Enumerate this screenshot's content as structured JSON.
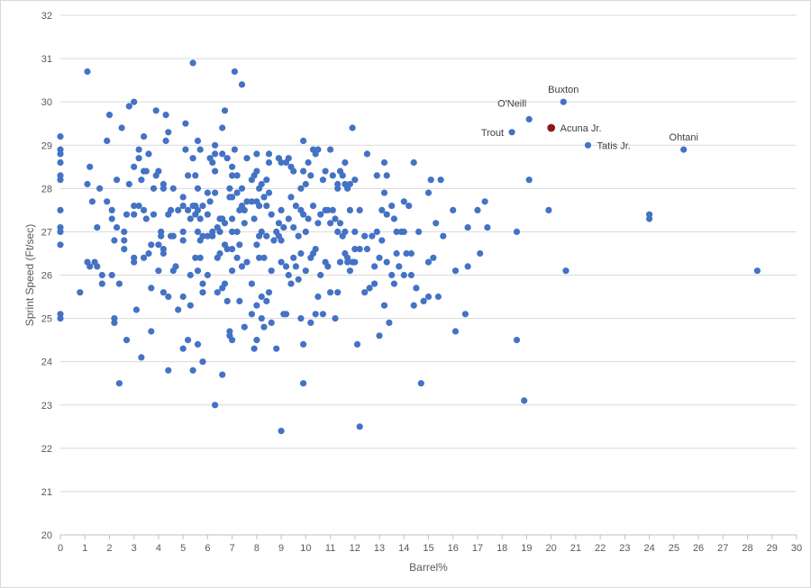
{
  "chart_data": {
    "type": "scatter",
    "xlabel": "Barrel%",
    "ylabel": "Sprint Speed (Ft/sec)",
    "xlim": [
      0,
      30
    ],
    "ylim": [
      20,
      32
    ],
    "x_ticks": [
      0,
      1,
      2,
      3,
      4,
      5,
      6,
      7,
      8,
      9,
      10,
      11,
      12,
      13,
      14,
      15,
      16,
      17,
      18,
      19,
      20,
      21,
      22,
      23,
      24,
      25,
      26,
      27,
      28,
      29,
      30
    ],
    "y_ticks": [
      20,
      21,
      22,
      23,
      24,
      25,
      26,
      27,
      28,
      29,
      30,
      31,
      32
    ],
    "grid": "horizontal",
    "legend": "none",
    "point_color": "#4472c4",
    "highlight_color": "#c00000",
    "annotations": [
      {
        "label": "Buxton",
        "x": 20.5,
        "y": 30.0,
        "position": "above"
      },
      {
        "label": "O'Neill",
        "x": 19.1,
        "y": 29.6,
        "position": "above-left"
      },
      {
        "label": "Trout",
        "x": 18.4,
        "y": 29.3,
        "position": "left"
      },
      {
        "label": "Acuna Jr.",
        "x": 20.0,
        "y": 29.4,
        "position": "right",
        "highlight": true
      },
      {
        "label": "Tatis Jr.",
        "x": 21.5,
        "y": 29.0,
        "position": "right"
      },
      {
        "label": "Ohtani",
        "x": 25.4,
        "y": 28.9,
        "position": "above"
      }
    ],
    "points": [
      [
        0,
        29.2
      ],
      [
        0,
        28.9
      ],
      [
        0,
        28.8
      ],
      [
        0,
        28.6
      ],
      [
        0,
        28.3
      ],
      [
        0,
        28.2
      ],
      [
        0,
        27.5
      ],
      [
        0,
        27.1
      ],
      [
        0,
        27.0
      ],
      [
        0,
        26.7
      ],
      [
        0,
        25.1
      ],
      [
        0,
        25.0
      ],
      [
        0.8,
        25.6
      ],
      [
        1.1,
        30.7
      ],
      [
        1.2,
        28.5
      ],
      [
        1.1,
        28.1
      ],
      [
        1.3,
        27.7
      ],
      [
        1.1,
        26.3
      ],
      [
        1.2,
        26.2
      ],
      [
        1.4,
        26.3
      ],
      [
        1.5,
        26.2
      ],
      [
        1.5,
        27.1
      ],
      [
        1.6,
        28.0
      ],
      [
        1.7,
        25.8
      ],
      [
        1.7,
        26.0
      ],
      [
        1.9,
        27.7
      ],
      [
        1.9,
        29.1
      ],
      [
        2.0,
        29.7
      ],
      [
        2.1,
        27.5
      ],
      [
        2.1,
        27.3
      ],
      [
        2.2,
        26.8
      ],
      [
        2.1,
        26.0
      ],
      [
        2.2,
        25.0
      ],
      [
        2.2,
        24.9
      ],
      [
        2.3,
        27.1
      ],
      [
        2.3,
        28.2
      ],
      [
        2.4,
        25.8
      ],
      [
        2.4,
        23.5
      ],
      [
        2.5,
        29.4
      ],
      [
        2.6,
        27.0
      ],
      [
        2.6,
        26.8
      ],
      [
        2.6,
        26.6
      ],
      [
        2.7,
        24.5
      ],
      [
        2.7,
        27.4
      ],
      [
        2.8,
        28.1
      ],
      [
        2.8,
        29.9
      ],
      [
        3.0,
        30.0
      ],
      [
        3.0,
        28.5
      ],
      [
        3.0,
        27.6
      ],
      [
        3.0,
        27.4
      ],
      [
        3.0,
        26.4
      ],
      [
        3.0,
        26.3
      ],
      [
        3.1,
        25.2
      ],
      [
        3.2,
        27.6
      ],
      [
        3.2,
        28.9
      ],
      [
        3.2,
        28.7
      ],
      [
        3.3,
        28.2
      ],
      [
        3.3,
        24.1
      ],
      [
        3.4,
        29.2
      ],
      [
        3.4,
        28.4
      ],
      [
        3.4,
        27.5
      ],
      [
        3.4,
        26.4
      ],
      [
        3.5,
        28.4
      ],
      [
        3.5,
        27.3
      ],
      [
        3.6,
        28.8
      ],
      [
        3.6,
        26.5
      ],
      [
        3.7,
        26.7
      ],
      [
        3.7,
        24.7
      ],
      [
        3.7,
        25.7
      ],
      [
        3.8,
        27.4
      ],
      [
        3.8,
        28.0
      ],
      [
        3.9,
        28.3
      ],
      [
        3.9,
        29.8
      ],
      [
        4.0,
        28.4
      ],
      [
        4.0,
        26.7
      ],
      [
        4.0,
        26.1
      ],
      [
        4.1,
        27.0
      ],
      [
        4.1,
        26.9
      ],
      [
        4.2,
        26.6
      ],
      [
        4.2,
        26.5
      ],
      [
        4.2,
        25.6
      ],
      [
        4.2,
        28.0
      ],
      [
        4.2,
        28.1
      ],
      [
        4.3,
        29.1
      ],
      [
        4.3,
        29.7
      ],
      [
        4.4,
        29.3
      ],
      [
        4.4,
        27.4
      ],
      [
        4.4,
        25.5
      ],
      [
        4.4,
        23.8
      ],
      [
        4.5,
        27.5
      ],
      [
        4.5,
        26.9
      ],
      [
        4.6,
        28.0
      ],
      [
        4.6,
        26.9
      ],
      [
        4.6,
        26.1
      ],
      [
        4.7,
        26.2
      ],
      [
        4.8,
        27.5
      ],
      [
        4.8,
        25.2
      ],
      [
        5.0,
        27.8
      ],
      [
        5.0,
        27.6
      ],
      [
        5.0,
        27.0
      ],
      [
        5.0,
        26.8
      ],
      [
        5.0,
        25.5
      ],
      [
        5.0,
        24.3
      ],
      [
        5.1,
        28.9
      ],
      [
        5.1,
        29.5
      ],
      [
        5.2,
        28.3
      ],
      [
        5.2,
        27.5
      ],
      [
        5.2,
        24.5
      ],
      [
        5.3,
        26.0
      ],
      [
        5.3,
        25.3
      ],
      [
        5.3,
        27.3
      ],
      [
        5.4,
        30.9
      ],
      [
        5.4,
        28.7
      ],
      [
        5.4,
        27.6
      ],
      [
        5.4,
        23.8
      ],
      [
        5.5,
        28.3
      ],
      [
        5.5,
        27.6
      ],
      [
        5.5,
        27.4
      ],
      [
        5.5,
        26.4
      ],
      [
        5.6,
        29.1
      ],
      [
        5.6,
        28.0
      ],
      [
        5.6,
        27.5
      ],
      [
        5.6,
        27.0
      ],
      [
        5.6,
        26.1
      ],
      [
        5.6,
        24.4
      ],
      [
        5.7,
        28.9
      ],
      [
        5.7,
        27.3
      ],
      [
        5.7,
        26.8
      ],
      [
        5.7,
        26.4
      ],
      [
        5.8,
        27.6
      ],
      [
        5.8,
        26.9
      ],
      [
        5.8,
        25.8
      ],
      [
        5.8,
        25.6
      ],
      [
        5.8,
        24.0
      ],
      [
        6.0,
        27.9
      ],
      [
        6.0,
        27.4
      ],
      [
        6.0,
        26.9
      ],
      [
        6.0,
        26.0
      ],
      [
        6.1,
        28.7
      ],
      [
        6.1,
        27.7
      ],
      [
        6.2,
        28.6
      ],
      [
        6.2,
        27.0
      ],
      [
        6.2,
        26.9
      ],
      [
        6.3,
        29.0
      ],
      [
        6.3,
        28.8
      ],
      [
        6.3,
        28.4
      ],
      [
        6.3,
        27.9
      ],
      [
        6.3,
        23.0
      ],
      [
        6.4,
        27.1
      ],
      [
        6.4,
        26.4
      ],
      [
        6.4,
        25.6
      ],
      [
        6.5,
        27.3
      ],
      [
        6.5,
        27.0
      ],
      [
        6.5,
        26.5
      ],
      [
        6.6,
        28.8
      ],
      [
        6.6,
        27.3
      ],
      [
        6.6,
        25.7
      ],
      [
        6.6,
        23.7
      ],
      [
        6.6,
        29.4
      ],
      [
        6.7,
        29.8
      ],
      [
        6.7,
        27.2
      ],
      [
        6.7,
        26.7
      ],
      [
        6.7,
        25.8
      ],
      [
        6.8,
        28.7
      ],
      [
        6.8,
        26.6
      ],
      [
        6.8,
        25.4
      ],
      [
        6.9,
        28.0
      ],
      [
        6.9,
        27.8
      ],
      [
        6.9,
        24.7
      ],
      [
        6.9,
        24.6
      ],
      [
        7.0,
        28.5
      ],
      [
        7.0,
        28.3
      ],
      [
        7.0,
        27.8
      ],
      [
        7.0,
        27.3
      ],
      [
        7.0,
        27.0
      ],
      [
        7.0,
        26.1
      ],
      [
        7.0,
        26.6
      ],
      [
        7.0,
        24.5
      ],
      [
        7.1,
        30.7
      ],
      [
        7.1,
        28.9
      ],
      [
        7.2,
        28.3
      ],
      [
        7.2,
        27.9
      ],
      [
        7.2,
        27.0
      ],
      [
        7.2,
        26.4
      ],
      [
        7.3,
        27.5
      ],
      [
        7.3,
        26.7
      ],
      [
        7.3,
        25.4
      ],
      [
        7.4,
        30.4
      ],
      [
        7.4,
        28.0
      ],
      [
        7.4,
        27.6
      ],
      [
        7.4,
        26.2
      ],
      [
        7.5,
        27.5
      ],
      [
        7.5,
        27.2
      ],
      [
        7.5,
        24.8
      ],
      [
        7.6,
        28.7
      ],
      [
        7.6,
        27.7
      ],
      [
        7.6,
        26.3
      ],
      [
        7.8,
        28.2
      ],
      [
        7.8,
        27.7
      ],
      [
        7.8,
        25.8
      ],
      [
        7.8,
        25.1
      ],
      [
        7.9,
        28.3
      ],
      [
        7.9,
        27.3
      ],
      [
        7.9,
        24.3
      ],
      [
        8.0,
        28.4
      ],
      [
        8.0,
        27.7
      ],
      [
        8.0,
        28.8
      ],
      [
        8.0,
        26.7
      ],
      [
        8.0,
        25.3
      ],
      [
        8.0,
        24.5
      ],
      [
        8.1,
        28.0
      ],
      [
        8.1,
        27.6
      ],
      [
        8.1,
        26.9
      ],
      [
        8.1,
        26.4
      ],
      [
        8.2,
        28.1
      ],
      [
        8.2,
        27.0
      ],
      [
        8.2,
        25.5
      ],
      [
        8.2,
        25.0
      ],
      [
        8.3,
        27.8
      ],
      [
        8.3,
        26.4
      ],
      [
        8.3,
        24.8
      ],
      [
        8.4,
        28.2
      ],
      [
        8.4,
        27.6
      ],
      [
        8.4,
        26.9
      ],
      [
        8.4,
        25.4
      ],
      [
        8.5,
        28.8
      ],
      [
        8.5,
        28.6
      ],
      [
        8.5,
        27.9
      ],
      [
        8.5,
        25.6
      ],
      [
        8.6,
        27.4
      ],
      [
        8.6,
        26.1
      ],
      [
        8.6,
        24.9
      ],
      [
        8.7,
        26.8
      ],
      [
        8.8,
        27.0
      ],
      [
        8.8,
        24.3
      ],
      [
        8.9,
        28.7
      ],
      [
        8.9,
        27.2
      ],
      [
        8.9,
        26.9
      ],
      [
        9.0,
        28.6
      ],
      [
        9.0,
        27.5
      ],
      [
        9.0,
        26.8
      ],
      [
        9.0,
        26.3
      ],
      [
        9.0,
        22.4
      ],
      [
        9.1,
        27.1
      ],
      [
        9.1,
        25.1
      ],
      [
        9.2,
        28.6
      ],
      [
        9.2,
        26.2
      ],
      [
        9.2,
        25.1
      ],
      [
        9.3,
        28.7
      ],
      [
        9.3,
        27.3
      ],
      [
        9.3,
        26.0
      ],
      [
        9.4,
        28.5
      ],
      [
        9.4,
        27.8
      ],
      [
        9.4,
        25.8
      ],
      [
        9.5,
        28.4
      ],
      [
        9.5,
        27.1
      ],
      [
        9.5,
        26.4
      ],
      [
        9.6,
        27.6
      ],
      [
        9.6,
        26.2
      ],
      [
        9.7,
        26.9
      ],
      [
        9.7,
        25.9
      ],
      [
        9.8,
        28.0
      ],
      [
        9.8,
        27.5
      ],
      [
        9.8,
        26.5
      ],
      [
        9.8,
        25.0
      ],
      [
        9.9,
        29.1
      ],
      [
        9.9,
        28.4
      ],
      [
        9.9,
        27.4
      ],
      [
        9.9,
        24.4
      ],
      [
        9.9,
        23.5
      ],
      [
        10.0,
        28.1
      ],
      [
        10.0,
        27.0
      ],
      [
        10.0,
        26.1
      ],
      [
        10.1,
        28.6
      ],
      [
        10.1,
        27.3
      ],
      [
        10.2,
        28.3
      ],
      [
        10.2,
        26.4
      ],
      [
        10.2,
        24.9
      ],
      [
        10.3,
        28.9
      ],
      [
        10.3,
        27.6
      ],
      [
        10.3,
        26.5
      ],
      [
        10.4,
        28.8
      ],
      [
        10.4,
        26.6
      ],
      [
        10.4,
        25.1
      ],
      [
        10.5,
        28.9
      ],
      [
        10.5,
        27.2
      ],
      [
        10.5,
        25.5
      ],
      [
        10.6,
        27.4
      ],
      [
        10.6,
        26.0
      ],
      [
        10.7,
        28.2
      ],
      [
        10.7,
        25.1
      ],
      [
        10.8,
        28.4
      ],
      [
        10.8,
        27.5
      ],
      [
        10.8,
        26.3
      ],
      [
        10.9,
        27.5
      ],
      [
        10.9,
        26.2
      ],
      [
        11.0,
        28.9
      ],
      [
        11.0,
        27.2
      ],
      [
        11.0,
        25.6
      ],
      [
        11.1,
        28.3
      ],
      [
        11.1,
        27.5
      ],
      [
        11.2,
        27.3
      ],
      [
        11.2,
        25.0
      ],
      [
        11.3,
        28.1
      ],
      [
        11.3,
        28.0
      ],
      [
        11.3,
        27.0
      ],
      [
        11.3,
        25.6
      ],
      [
        11.4,
        28.4
      ],
      [
        11.4,
        27.2
      ],
      [
        11.4,
        26.3
      ],
      [
        11.5,
        28.3
      ],
      [
        11.5,
        26.9
      ],
      [
        11.6,
        28.6
      ],
      [
        11.6,
        28.1
      ],
      [
        11.6,
        27.0
      ],
      [
        11.6,
        26.5
      ],
      [
        11.7,
        28.0
      ],
      [
        11.7,
        26.4
      ],
      [
        11.7,
        26.3
      ],
      [
        11.8,
        28.1
      ],
      [
        11.8,
        27.5
      ],
      [
        11.8,
        26.1
      ],
      [
        11.9,
        29.4
      ],
      [
        11.9,
        26.3
      ],
      [
        12.0,
        28.2
      ],
      [
        12.0,
        27.0
      ],
      [
        12.0,
        26.3
      ],
      [
        12.0,
        26.6
      ],
      [
        12.1,
        24.4
      ],
      [
        12.2,
        22.5
      ],
      [
        12.2,
        26.6
      ],
      [
        12.2,
        27.5
      ],
      [
        12.4,
        26.9
      ],
      [
        12.4,
        25.6
      ],
      [
        12.5,
        28.8
      ],
      [
        12.5,
        26.6
      ],
      [
        12.6,
        25.7
      ],
      [
        12.7,
        26.9
      ],
      [
        12.8,
        26.2
      ],
      [
        12.8,
        25.8
      ],
      [
        12.9,
        28.3
      ],
      [
        12.9,
        27.0
      ],
      [
        13.0,
        26.4
      ],
      [
        13.0,
        24.6
      ],
      [
        13.1,
        27.5
      ],
      [
        13.1,
        26.8
      ],
      [
        13.2,
        28.6
      ],
      [
        13.2,
        27.9
      ],
      [
        13.2,
        25.3
      ],
      [
        13.3,
        28.3
      ],
      [
        13.3,
        27.4
      ],
      [
        13.3,
        26.3
      ],
      [
        13.4,
        24.9
      ],
      [
        13.5,
        27.6
      ],
      [
        13.5,
        26.0
      ],
      [
        13.6,
        27.3
      ],
      [
        13.6,
        25.8
      ],
      [
        13.7,
        27.0
      ],
      [
        13.7,
        26.5
      ],
      [
        13.8,
        26.2
      ],
      [
        13.9,
        27.0
      ],
      [
        14.0,
        27.7
      ],
      [
        14.0,
        27.0
      ],
      [
        14.0,
        26.0
      ],
      [
        14.1,
        26.5
      ],
      [
        14.2,
        27.6
      ],
      [
        14.3,
        26.5
      ],
      [
        14.3,
        26.0
      ],
      [
        14.4,
        28.6
      ],
      [
        14.4,
        25.3
      ],
      [
        14.5,
        25.7
      ],
      [
        14.6,
        27.0
      ],
      [
        14.7,
        23.5
      ],
      [
        14.8,
        25.4
      ],
      [
        15.0,
        27.9
      ],
      [
        15.0,
        26.3
      ],
      [
        15.0,
        25.5
      ],
      [
        15.1,
        28.2
      ],
      [
        15.2,
        26.4
      ],
      [
        15.3,
        27.2
      ],
      [
        15.4,
        25.5
      ],
      [
        15.5,
        28.2
      ],
      [
        15.6,
        26.9
      ],
      [
        16.0,
        27.5
      ],
      [
        16.1,
        26.1
      ],
      [
        16.1,
        24.7
      ],
      [
        16.5,
        25.1
      ],
      [
        16.6,
        27.1
      ],
      [
        16.6,
        26.2
      ],
      [
        17.0,
        27.5
      ],
      [
        17.1,
        26.5
      ],
      [
        17.3,
        27.7
      ],
      [
        17.4,
        27.1
      ],
      [
        18.6,
        27.0
      ],
      [
        18.6,
        24.5
      ],
      [
        18.9,
        23.1
      ],
      [
        19.1,
        28.2
      ],
      [
        19.9,
        27.5
      ],
      [
        20.6,
        26.1
      ],
      [
        24.0,
        27.4
      ],
      [
        24.0,
        27.3
      ],
      [
        28.4,
        26.1
      ],
      [
        18.4,
        29.3
      ],
      [
        19.1,
        29.6
      ],
      [
        20.5,
        30.0
      ],
      [
        21.5,
        29.0
      ],
      [
        25.4,
        28.9
      ]
    ],
    "highlight_points": [
      [
        20.0,
        29.4
      ]
    ]
  }
}
